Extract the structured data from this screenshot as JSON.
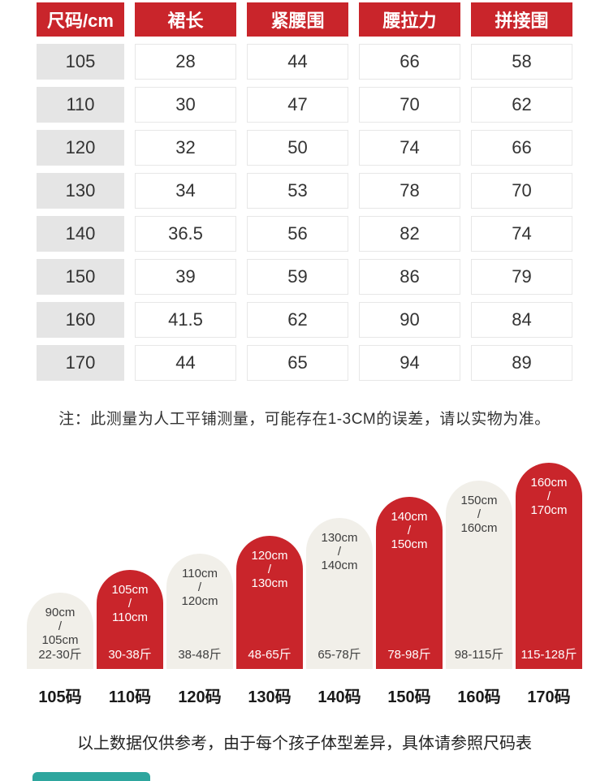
{
  "notes": {
    "measure_note": "注：此测量为人工平铺测量，可能存在1-3CM的误差，请以实物为准。",
    "footer_note": "以上数据仅供参考，由于每个孩子体型差异，具体请参照尺码表"
  },
  "colors": {
    "header_red": "#C9252B",
    "bar_red": "#C9252B",
    "bar_gray": "#F1EFE9",
    "size_column_gray": "#E5E5E5",
    "teal_accent": "#2EA69E"
  },
  "chart_data": [
    {
      "type": "table",
      "headers": [
        "尺码/cm",
        "裙长",
        "紧腰围",
        "腰拉力",
        "拼接围"
      ],
      "rows": [
        [
          "105",
          "28",
          "44",
          "66",
          "58"
        ],
        [
          "110",
          "30",
          "47",
          "70",
          "62"
        ],
        [
          "120",
          "32",
          "50",
          "74",
          "66"
        ],
        [
          "130",
          "34",
          "53",
          "78",
          "70"
        ],
        [
          "140",
          "36.5",
          "56",
          "82",
          "74"
        ],
        [
          "150",
          "39",
          "59",
          "86",
          "79"
        ],
        [
          "160",
          "41.5",
          "62",
          "90",
          "84"
        ],
        [
          "170",
          "44",
          "65",
          "94",
          "89"
        ]
      ]
    },
    {
      "type": "bar",
      "categories": [
        "105码",
        "110码",
        "120码",
        "130码",
        "140码",
        "150码",
        "160码",
        "170码"
      ],
      "slash": "/",
      "bars": [
        {
          "height_min": "90cm",
          "height_max": "105cm",
          "weight": "22-30斤"
        },
        {
          "height_min": "105cm",
          "height_max": "110cm",
          "weight": "30-38斤"
        },
        {
          "height_min": "110cm",
          "height_max": "120cm",
          "weight": "38-48斤"
        },
        {
          "height_min": "120cm",
          "height_max": "130cm",
          "weight": "48-65斤"
        },
        {
          "height_min": "130cm",
          "height_max": "140cm",
          "weight": "65-78斤"
        },
        {
          "height_min": "140cm",
          "height_max": "150cm",
          "weight": "78-98斤"
        },
        {
          "height_min": "150cm",
          "height_max": "160cm",
          "weight": "98-115斤"
        },
        {
          "height_min": "160cm",
          "height_max": "170cm",
          "weight": "115-128斤"
        }
      ]
    }
  ]
}
